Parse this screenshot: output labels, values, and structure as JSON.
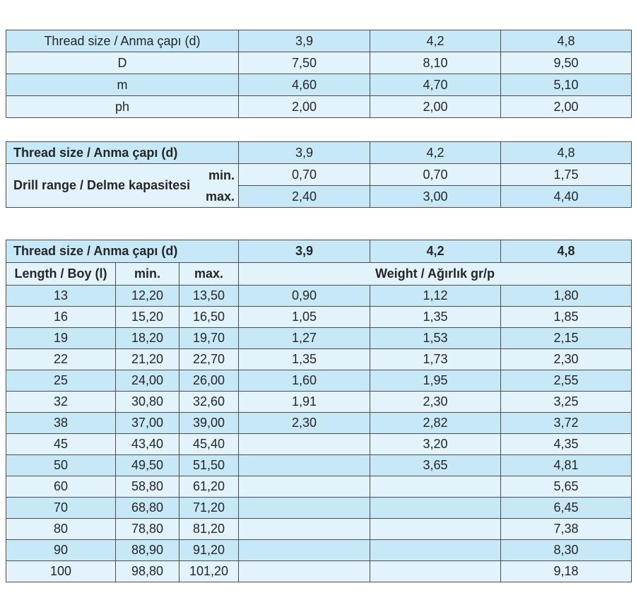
{
  "colors": {
    "row_dark": "#c6e8f7",
    "row_light": "#e3f3fb",
    "border": "#4d4d4d",
    "text": "#262626",
    "page_bg": "#ffffff"
  },
  "table1": {
    "header": {
      "label": "Thread size / Anma çapı (d)",
      "values": [
        "3,9",
        "4,2",
        "4,8"
      ]
    },
    "rows": [
      {
        "label": "D",
        "values": [
          "7,50",
          "8,10",
          "9,50"
        ]
      },
      {
        "label": "m",
        "values": [
          "4,60",
          "4,70",
          "5,10"
        ]
      },
      {
        "label": "ph",
        "values": [
          "2,00",
          "2,00",
          "2,00"
        ]
      }
    ]
  },
  "table2": {
    "header": {
      "label": "Thread size / Anma çapı (d)",
      "values": [
        "3,9",
        "4,2",
        "4,8"
      ]
    },
    "range_label": "Drill range / Delme kapasitesi",
    "rows": [
      {
        "label": "min.",
        "values": [
          "0,70",
          "0,70",
          "1,75"
        ]
      },
      {
        "label": "max.",
        "values": [
          "2,40",
          "3,00",
          "4,40"
        ]
      }
    ]
  },
  "table3": {
    "header": {
      "label": "Thread size / Anma çapı (d)",
      "values": [
        "3,9",
        "4,2",
        "4,8"
      ]
    },
    "subheader": {
      "length": "Length / Boy (l)",
      "min": "min.",
      "max": "max.",
      "weight": "Weight / Ağırlık gr/p"
    },
    "rows": [
      {
        "length": "13",
        "min": "12,20",
        "max": "13,50",
        "weights": [
          "0,90",
          "1,12",
          "1,80"
        ]
      },
      {
        "length": "16",
        "min": "15,20",
        "max": "16,50",
        "weights": [
          "1,05",
          "1,35",
          "1,85"
        ]
      },
      {
        "length": "19",
        "min": "18,20",
        "max": "19,70",
        "weights": [
          "1,27",
          "1,53",
          "2,15"
        ]
      },
      {
        "length": "22",
        "min": "21,20",
        "max": "22,70",
        "weights": [
          "1,35",
          "1,73",
          "2,30"
        ]
      },
      {
        "length": "25",
        "min": "24,00",
        "max": "26,00",
        "weights": [
          "1,60",
          "1,95",
          "2,55"
        ]
      },
      {
        "length": "32",
        "min": "30,80",
        "max": "32,60",
        "weights": [
          "1,91",
          "2,30",
          "3,25"
        ]
      },
      {
        "length": "38",
        "min": "37,00",
        "max": "39,00",
        "weights": [
          "2,30",
          "2,82",
          "3,72"
        ]
      },
      {
        "length": "45",
        "min": "43,40",
        "max": "45,40",
        "weights": [
          "",
          "3,20",
          "4,35"
        ]
      },
      {
        "length": "50",
        "min": "49,50",
        "max": "51,50",
        "weights": [
          "",
          "3,65",
          "4,81"
        ]
      },
      {
        "length": "60",
        "min": "58,80",
        "max": "61,20",
        "weights": [
          "",
          "",
          "5,65"
        ]
      },
      {
        "length": "70",
        "min": "68,80",
        "max": "71,20",
        "weights": [
          "",
          "",
          "6,45"
        ]
      },
      {
        "length": "80",
        "min": "78,80",
        "max": "81,20",
        "weights": [
          "",
          "",
          "7,38"
        ]
      },
      {
        "length": "90",
        "min": "88,90",
        "max": "91,20",
        "weights": [
          "",
          "",
          "8,30"
        ]
      },
      {
        "length": "100",
        "min": "98,80",
        "max": "101,20",
        "weights": [
          "",
          "",
          "9,18"
        ]
      }
    ]
  }
}
